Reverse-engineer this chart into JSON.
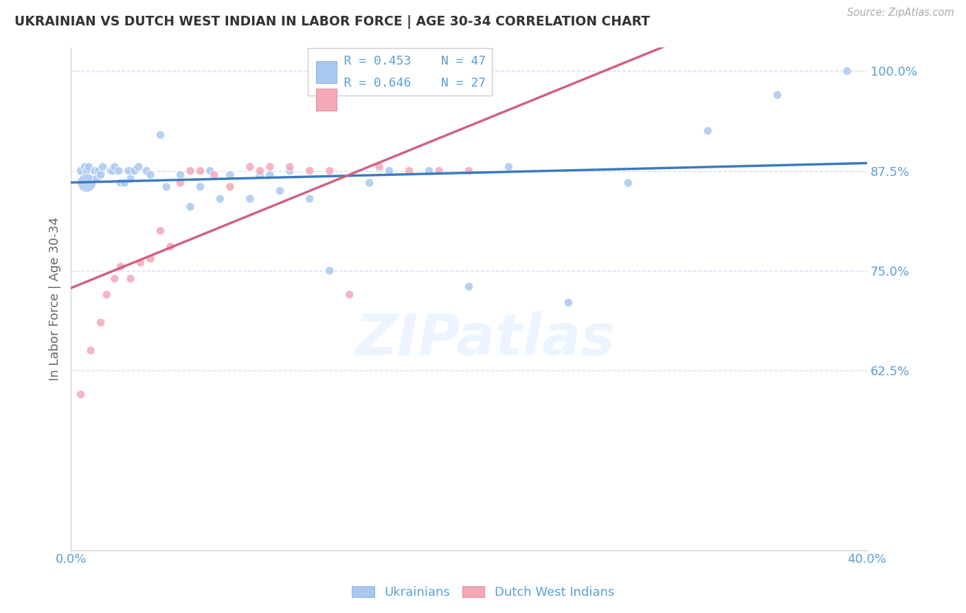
{
  "title": "UKRAINIAN VS DUTCH WEST INDIAN IN LABOR FORCE | AGE 30-34 CORRELATION CHART",
  "source_text": "Source: ZipAtlas.com",
  "ylabel": "In Labor Force | Age 30-34",
  "xlim": [
    0.0,
    0.4
  ],
  "ylim": [
    0.4,
    1.03
  ],
  "yticks": [
    0.625,
    0.75,
    0.875,
    1.0
  ],
  "ytick_labels": [
    "62.5%",
    "75.0%",
    "87.5%",
    "100.0%"
  ],
  "xticks": [
    0.0,
    0.05,
    0.1,
    0.15,
    0.2,
    0.25,
    0.3,
    0.35,
    0.4
  ],
  "xtick_labels": [
    "0.0%",
    "",
    "",
    "",
    "",
    "",
    "",
    "",
    "40.0%"
  ],
  "watermark": "ZIPatlas",
  "legend_blue_r": "R = 0.453",
  "legend_blue_n": "N = 47",
  "legend_pink_r": "R = 0.646",
  "legend_pink_n": "N = 27",
  "blue_color": "#a8c8f0",
  "pink_color": "#f4a8b8",
  "blue_line_color": "#3a7abf",
  "pink_line_color": "#d06080",
  "axis_color": "#5a9fd4",
  "grid_color": "#d0dff0",
  "ukrainians_x": [
    0.005,
    0.007,
    0.008,
    0.008,
    0.009,
    0.012,
    0.013,
    0.014,
    0.015,
    0.016,
    0.02,
    0.021,
    0.022,
    0.024,
    0.025,
    0.027,
    0.029,
    0.03,
    0.032,
    0.034,
    0.038,
    0.04,
    0.045,
    0.048,
    0.055,
    0.06,
    0.065,
    0.07,
    0.075,
    0.08,
    0.09,
    0.095,
    0.1,
    0.105,
    0.11,
    0.12,
    0.13,
    0.15,
    0.16,
    0.18,
    0.2,
    0.22,
    0.25,
    0.28,
    0.32,
    0.355,
    0.39
  ],
  "ukrainians_y": [
    0.875,
    0.88,
    0.875,
    0.86,
    0.88,
    0.875,
    0.865,
    0.875,
    0.87,
    0.88,
    0.875,
    0.875,
    0.88,
    0.875,
    0.86,
    0.86,
    0.875,
    0.865,
    0.875,
    0.88,
    0.875,
    0.87,
    0.92,
    0.855,
    0.87,
    0.83,
    0.855,
    0.875,
    0.84,
    0.87,
    0.84,
    0.87,
    0.87,
    0.85,
    0.875,
    0.84,
    0.75,
    0.86,
    0.875,
    0.875,
    0.73,
    0.88,
    0.71,
    0.86,
    0.925,
    0.97,
    1.0
  ],
  "ukrainians_size": [
    80,
    80,
    80,
    380,
    80,
    80,
    80,
    80,
    80,
    80,
    80,
    80,
    80,
    80,
    80,
    80,
    80,
    80,
    80,
    80,
    80,
    80,
    80,
    80,
    80,
    80,
    80,
    80,
    80,
    80,
    80,
    80,
    80,
    80,
    80,
    80,
    80,
    80,
    80,
    80,
    80,
    80,
    80,
    80,
    80,
    80,
    80
  ],
  "dutch_x": [
    0.005,
    0.01,
    0.015,
    0.018,
    0.022,
    0.025,
    0.03,
    0.035,
    0.04,
    0.045,
    0.05,
    0.055,
    0.06,
    0.065,
    0.072,
    0.08,
    0.09,
    0.095,
    0.1,
    0.11,
    0.12,
    0.13,
    0.14,
    0.155,
    0.17,
    0.185,
    0.2
  ],
  "dutch_y": [
    0.595,
    0.65,
    0.685,
    0.72,
    0.74,
    0.755,
    0.74,
    0.76,
    0.765,
    0.8,
    0.78,
    0.86,
    0.875,
    0.875,
    0.87,
    0.855,
    0.88,
    0.875,
    0.88,
    0.88,
    0.875,
    0.875,
    0.72,
    0.88,
    0.875,
    0.875,
    0.875
  ],
  "dutch_size": [
    80,
    80,
    80,
    80,
    80,
    80,
    80,
    80,
    80,
    80,
    80,
    80,
    80,
    80,
    80,
    80,
    80,
    80,
    80,
    80,
    80,
    80,
    80,
    80,
    80,
    80,
    80
  ]
}
